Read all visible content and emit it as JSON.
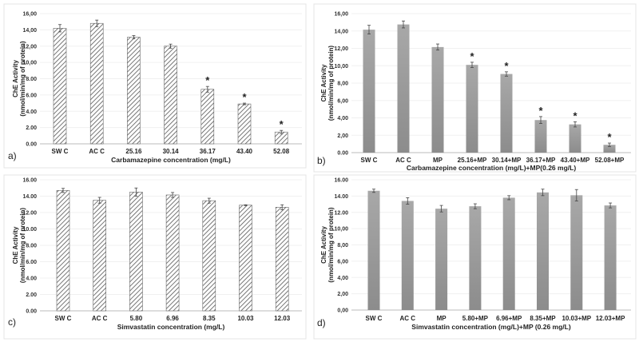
{
  "chart_data": [
    {
      "type": "bar",
      "panel_label": "a)",
      "style": "hatched",
      "xlabel": "Carbamazepine concentration (mg/L)",
      "ylabel": [
        "ChE Activity",
        "(nmol/min/mg of protein)"
      ],
      "ylim": [
        0,
        16
      ],
      "yticks": [
        "0.00",
        "2.00",
        "4.00",
        "6.00",
        "8.00",
        "10,00",
        "12,00",
        "14,00",
        "16,00"
      ],
      "categories": [
        "SW C",
        "AC C",
        "25.16",
        "30.14",
        "36.17",
        "43.40",
        "52.08"
      ],
      "values": [
        14.2,
        14.8,
        13.1,
        12.0,
        6.7,
        4.9,
        1.45
      ],
      "errors": [
        0.45,
        0.4,
        0.2,
        0.25,
        0.35,
        0.1,
        0.2
      ],
      "significant": [
        false,
        false,
        false,
        false,
        true,
        true,
        true
      ],
      "significance_mark": "*",
      "grid": true
    },
    {
      "type": "bar",
      "panel_label": "b)",
      "style": "solid",
      "xlabel": "Carbamazepine concentration (mg/L)+MP(0.26 mg/L)",
      "ylabel": [
        "ChE Activity",
        "(nmol/min/mg of protein)"
      ],
      "ylim": [
        0,
        16
      ],
      "yticks": [
        "0.00",
        "2,00",
        "4,00",
        "6,00",
        "8,00",
        "10,00",
        "12,00",
        "14,00",
        "16,00"
      ],
      "categories": [
        "SW C",
        "AC C",
        "MP",
        "25.16+MP",
        "30.14+MP",
        "36.17+MP",
        "43.40+MP",
        "52.08+MP"
      ],
      "values": [
        14.15,
        14.75,
        12.15,
        10.1,
        9.05,
        3.75,
        3.25,
        0.9
      ],
      "errors": [
        0.5,
        0.4,
        0.35,
        0.3,
        0.25,
        0.4,
        0.3,
        0.2
      ],
      "significant": [
        false,
        false,
        false,
        true,
        true,
        true,
        true,
        true
      ],
      "significance_mark": "*",
      "grid": true
    },
    {
      "type": "bar",
      "panel_label": "c)",
      "style": "hatched",
      "xlabel": "Simvastatin concentration (mg/L)",
      "ylabel": [
        "ChE Activity",
        "(nmol/min/mg of protein)"
      ],
      "ylim": [
        0,
        16
      ],
      "yticks": [
        "0.00",
        "2.00",
        "4.00",
        "6.00",
        "8.00",
        "10.00",
        "12.00",
        "14.00",
        "16.00"
      ],
      "categories": [
        "SW C",
        "AC C",
        "5.80",
        "6.96",
        "8.35",
        "10.03",
        "12.03"
      ],
      "values": [
        14.7,
        13.5,
        14.5,
        14.15,
        13.45,
        12.9,
        12.65
      ],
      "errors": [
        0.25,
        0.35,
        0.5,
        0.3,
        0.3,
        0.05,
        0.3
      ],
      "significant": [
        false,
        false,
        false,
        false,
        false,
        false,
        false
      ],
      "significance_mark": "*",
      "grid": true
    },
    {
      "type": "bar",
      "panel_label": "d)",
      "style": "solid",
      "xlabel": "Simvastatin concentration (mg/L)+MP (0.26 mg/L)",
      "ylabel": [
        "ChE Activity",
        "(nmol/min/mg of protein)"
      ],
      "ylim": [
        0,
        16
      ],
      "yticks": [
        "0,00",
        "2,00",
        "4,00",
        "6,00",
        "8,00",
        "10,00",
        "12.00",
        "14.00",
        "16.00"
      ],
      "categories": [
        "SW C",
        "AC C",
        "MP",
        "5.80+MP",
        "6.96+MP",
        "8.35+MP",
        "10.03+MP",
        "12.03+MP"
      ],
      "values": [
        14.65,
        13.4,
        12.45,
        12.75,
        13.8,
        14.45,
        14.1,
        12.85
      ],
      "errors": [
        0.2,
        0.4,
        0.4,
        0.3,
        0.25,
        0.4,
        0.7,
        0.3
      ],
      "significant": [
        false,
        false,
        false,
        false,
        false,
        false,
        false,
        false
      ],
      "significance_mark": "*",
      "grid": true
    }
  ]
}
